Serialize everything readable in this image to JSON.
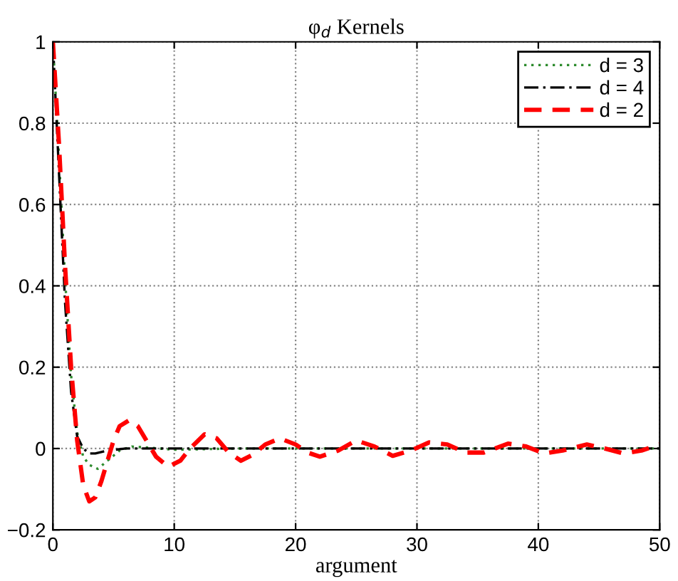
{
  "chart_data": {
    "type": "line",
    "title": "φ$_{d}$ Kernels",
    "xlabel": "argument",
    "xlim": [
      0,
      50
    ],
    "ylim": [
      -0.2,
      1
    ],
    "xticks": [
      0,
      10,
      20,
      30,
      40,
      50
    ],
    "yticks": [
      {
        "value": -0.2,
        "label": "−0.2"
      },
      0,
      0.2,
      0.4,
      0.6,
      0.8,
      1
    ],
    "grid": true,
    "legend": "top right",
    "marker": "none",
    "series": [
      {
        "name": "d = 3",
        "color": "#2e8b2e",
        "line_style": "dotted",
        "x": [
          0,
          0.5,
          1,
          1.5,
          2,
          2.5,
          3,
          3.7,
          4.5,
          5.5,
          6.5,
          8,
          10,
          15,
          20,
          30,
          40,
          50
        ],
        "values": [
          1,
          0.72,
          0.42,
          0.18,
          0.04,
          -0.02,
          -0.04,
          -0.05,
          -0.03,
          -0.005,
          0.005,
          0.002,
          -0.003,
          0,
          0,
          0,
          0,
          0
        ]
      },
      {
        "name": "d = 4",
        "color": "#000000",
        "line_style": "dashdot",
        "x": [
          0,
          0.5,
          1,
          1.5,
          2,
          2.5,
          3,
          3.5,
          4.5,
          6,
          10,
          20,
          30,
          40,
          50
        ],
        "values": [
          1,
          0.68,
          0.36,
          0.14,
          0.03,
          0.0,
          -0.012,
          -0.012,
          -0.005,
          0,
          0,
          0,
          0,
          0,
          0
        ]
      },
      {
        "name": "d = 2",
        "color": "#ff0000",
        "line_style": "dashed",
        "x": [
          0,
          0.5,
          1,
          1.5,
          2,
          2.5,
          3,
          3.5,
          4,
          4.5,
          5,
          5.5,
          6.3,
          7,
          7.7,
          8.5,
          9.5,
          10.5,
          11.3,
          12.5,
          13.5,
          14.5,
          15.5,
          16.5,
          17.5,
          18.7,
          20,
          21,
          22,
          23.5,
          25,
          26.5,
          28,
          29.5,
          31,
          32.5,
          34,
          35.5,
          37.5,
          39,
          40.5,
          42,
          44,
          45.5,
          47,
          48.5,
          50
        ],
        "values": [
          1,
          0.75,
          0.45,
          0.2,
          0.02,
          -0.09,
          -0.13,
          -0.12,
          -0.08,
          -0.03,
          0.02,
          0.055,
          0.07,
          0.055,
          0.02,
          -0.02,
          -0.045,
          -0.03,
          0.0,
          0.035,
          0.025,
          -0.01,
          -0.03,
          -0.015,
          0.01,
          0.025,
          0.01,
          -0.01,
          -0.02,
          -0.005,
          0.02,
          0.005,
          -0.018,
          -0.005,
          0.015,
          0.01,
          -0.01,
          -0.01,
          0.012,
          0.005,
          -0.012,
          -0.005,
          0.01,
          0.0,
          -0.012,
          -0.005,
          0.01
        ]
      }
    ]
  }
}
